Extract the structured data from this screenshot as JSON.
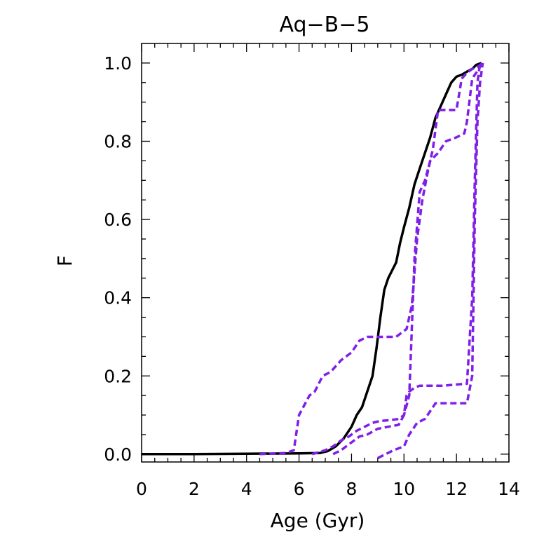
{
  "chart_data": {
    "type": "line",
    "title": "Aq−B−5",
    "xlabel": "Age (Gyr)",
    "ylabel": "F",
    "xlim": [
      0,
      14
    ],
    "ylim": [
      -0.02,
      1.05
    ],
    "xticks": [
      "0",
      "2",
      "4",
      "6",
      "8",
      "10",
      "12",
      "14"
    ],
    "yticks": [
      "0.0",
      "0.2",
      "0.4",
      "0.6",
      "0.8",
      "1.0"
    ],
    "colors": {
      "main": "#000000",
      "dashed": "#7f1fe8"
    },
    "series": [
      {
        "name": "main",
        "style": "solid",
        "x": [
          0,
          2,
          4,
          6,
          6.8,
          7.1,
          7.4,
          7.7,
          8.0,
          8.2,
          8.4,
          8.6,
          8.8,
          8.95,
          9.1,
          9.25,
          9.4,
          9.55,
          9.7,
          9.85,
          10.0,
          10.2,
          10.4,
          10.6,
          10.8,
          11.0,
          11.2,
          11.4,
          11.6,
          11.8,
          12.0,
          12.2,
          12.4,
          12.6,
          12.75,
          12.95
        ],
        "y": [
          0.0,
          0.0,
          0.001,
          0.002,
          0.003,
          0.008,
          0.02,
          0.04,
          0.07,
          0.1,
          0.12,
          0.16,
          0.2,
          0.27,
          0.35,
          0.42,
          0.45,
          0.47,
          0.49,
          0.54,
          0.58,
          0.63,
          0.69,
          0.73,
          0.77,
          0.81,
          0.86,
          0.89,
          0.92,
          0.95,
          0.965,
          0.97,
          0.978,
          0.985,
          0.995,
          1.0
        ]
      },
      {
        "name": "dashed-1",
        "style": "dashed",
        "x": [
          4.5,
          5.5,
          5.8,
          6.0,
          6.4,
          6.6,
          6.9,
          7.2,
          7.6,
          8.0,
          8.3,
          8.6,
          8.9,
          9.3,
          9.7,
          9.9,
          10.1,
          10.3,
          10.5,
          10.7,
          10.9,
          11.1,
          11.3,
          11.5,
          11.8,
          12.0,
          12.1,
          12.2,
          12.4,
          12.6,
          12.8,
          13.0
        ],
        "y": [
          0.0,
          0.003,
          0.01,
          0.1,
          0.15,
          0.16,
          0.2,
          0.21,
          0.24,
          0.26,
          0.29,
          0.3,
          0.3,
          0.3,
          0.3,
          0.31,
          0.32,
          0.38,
          0.55,
          0.65,
          0.72,
          0.78,
          0.88,
          0.88,
          0.88,
          0.88,
          0.92,
          0.96,
          0.975,
          0.985,
          0.99,
          1.0
        ]
      },
      {
        "name": "dashed-2",
        "style": "dashed",
        "x": [
          6.5,
          7.0,
          7.3,
          7.6,
          7.9,
          8.2,
          8.5,
          8.8,
          9.1,
          9.5,
          9.8,
          10.0,
          10.2,
          10.4,
          10.6,
          10.8,
          11.0,
          11.3,
          11.6,
          12.0,
          12.3,
          12.4,
          12.6,
          12.8,
          13.0
        ],
        "y": [
          0.0,
          0.01,
          0.02,
          0.035,
          0.045,
          0.06,
          0.07,
          0.08,
          0.085,
          0.087,
          0.09,
          0.1,
          0.15,
          0.5,
          0.67,
          0.7,
          0.75,
          0.77,
          0.8,
          0.81,
          0.82,
          0.85,
          0.96,
          0.98,
          1.0
        ]
      },
      {
        "name": "dashed-3",
        "style": "dashed",
        "x": [
          7.3,
          7.6,
          8.0,
          8.3,
          8.6,
          9.0,
          9.4,
          9.8,
          10.0,
          10.1,
          10.2,
          10.4,
          10.6,
          11.0,
          11.5,
          12.0,
          12.4,
          12.6,
          12.7,
          12.8,
          12.9
        ],
        "y": [
          0.0,
          0.01,
          0.03,
          0.045,
          0.05,
          0.065,
          0.07,
          0.075,
          0.1,
          0.15,
          0.16,
          0.17,
          0.175,
          0.175,
          0.175,
          0.178,
          0.18,
          0.4,
          0.7,
          0.95,
          1.0
        ]
      },
      {
        "name": "dashed-4",
        "style": "dashed",
        "x": [
          9.0,
          9.3,
          9.6,
          10.0,
          10.2,
          10.5,
          10.8,
          11.0,
          11.2,
          11.6,
          12.0,
          12.4,
          12.6,
          12.7,
          12.8,
          12.9,
          13.0
        ],
        "y": [
          -0.01,
          0.0,
          0.01,
          0.02,
          0.05,
          0.08,
          0.09,
          0.11,
          0.13,
          0.13,
          0.13,
          0.13,
          0.2,
          0.6,
          0.85,
          0.95,
          1.0
        ]
      }
    ]
  }
}
